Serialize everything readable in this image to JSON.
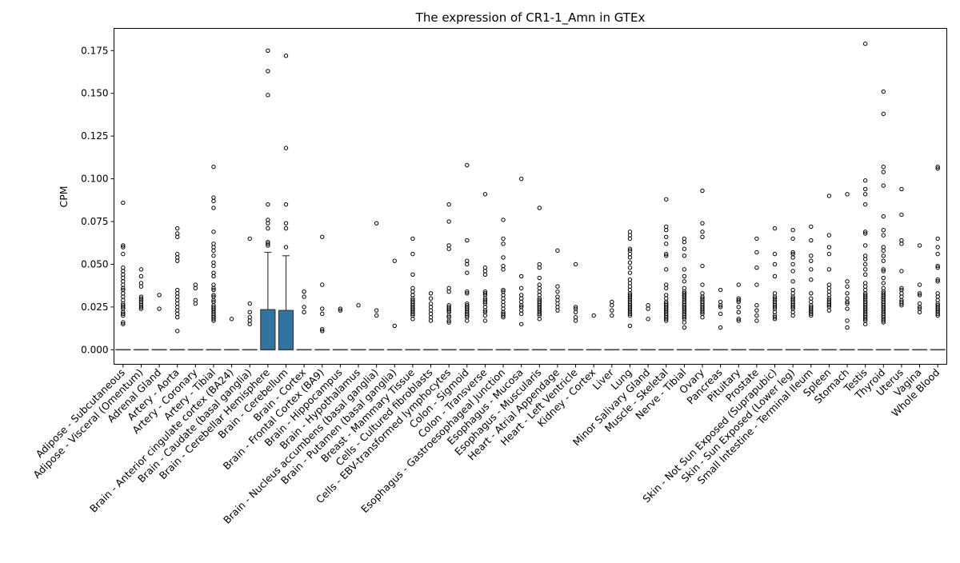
{
  "chart_data": {
    "type": "box",
    "title": "The expression of CR1-1_Amn in GTEx",
    "xlabel": "",
    "ylabel": "CPM",
    "ylim": [
      -0.0085,
      0.188
    ],
    "yticks": [
      0.0,
      0.025,
      0.05,
      0.075,
      0.1,
      0.125,
      0.15,
      0.175
    ],
    "ytick_labels": [
      "0.000",
      "0.025",
      "0.050",
      "0.075",
      "0.100",
      "0.125",
      "0.150",
      "0.175"
    ],
    "grid": false,
    "box_color": "#3274a1",
    "categories": [
      "Adipose - Subcutaneous",
      "Adipose - Visceral (Omentum)",
      "Adrenal Gland",
      "Artery - Aorta",
      "Artery - Coronary",
      "Artery - Tibial",
      "Brain - Anterior cingulate cortex (BA24)",
      "Brain - Caudate (basal ganglia)",
      "Brain - Cerebellar Hemisphere",
      "Brain - Cerebellum",
      "Brain - Cortex",
      "Brain - Frontal Cortex (BA9)",
      "Brain - Hippocampus",
      "Brain - Hypothalamus",
      "Brain - Nucleus accumbens (basal ganglia)",
      "Brain - Putamen (basal ganglia)",
      "Breast - Mammary Tissue",
      "Cells - Cultured fibroblasts",
      "Cells - EBV-transformed lymphocytes",
      "Colon - Sigmoid",
      "Colon - Transverse",
      "Esophagus - Gastroesophageal Junction",
      "Esophagus - Mucosa",
      "Esophagus - Muscularis",
      "Heart - Atrial Appendage",
      "Heart - Left Ventricle",
      "Kidney - Cortex",
      "Liver",
      "Lung",
      "Minor Salivary Gland",
      "Muscle - Skeletal",
      "Nerve - Tibial",
      "Ovary",
      "Pancreas",
      "Pituitary",
      "Prostate",
      "Skin - Not Sun Exposed (Suprapubic)",
      "Skin - Sun Exposed (Lower leg)",
      "Small Intestine - Terminal Ileum",
      "Spleen",
      "Stomach",
      "Testis",
      "Thyroid",
      "Uterus",
      "Vagina",
      "Whole Blood"
    ],
    "boxes": [
      {
        "q1": 0,
        "median": 0,
        "q3": 0,
        "whisker_low": 0,
        "whisker_high": 0,
        "outliers": [
          0.086,
          0.061,
          0.06,
          0.056,
          0.048,
          0.046,
          0.044,
          0.042,
          0.04,
          0.038,
          0.036,
          0.035,
          0.033,
          0.031,
          0.029,
          0.027,
          0.026,
          0.025,
          0.024,
          0.022,
          0.021,
          0.02,
          0.016,
          0.015
        ]
      },
      {
        "q1": 0,
        "median": 0,
        "q3": 0,
        "whisker_low": 0,
        "whisker_high": 0,
        "outliers": [
          0.047,
          0.043,
          0.039,
          0.037,
          0.031,
          0.03,
          0.029,
          0.028,
          0.027,
          0.026,
          0.025,
          0.024
        ]
      },
      {
        "q1": 0,
        "median": 0,
        "q3": 0,
        "whisker_low": 0,
        "whisker_high": 0,
        "outliers": [
          0.032,
          0.024
        ]
      },
      {
        "q1": 0,
        "median": 0,
        "q3": 0,
        "whisker_low": 0,
        "whisker_high": 0,
        "outliers": [
          0.071,
          0.068,
          0.066,
          0.056,
          0.054,
          0.052,
          0.035,
          0.033,
          0.031,
          0.029,
          0.027,
          0.025,
          0.023,
          0.021,
          0.019,
          0.011
        ]
      },
      {
        "q1": 0,
        "median": 0,
        "q3": 0,
        "whisker_low": 0,
        "whisker_high": 0,
        "outliers": [
          0.038,
          0.036,
          0.029,
          0.027
        ]
      },
      {
        "q1": 0,
        "median": 0,
        "q3": 0,
        "whisker_low": 0,
        "whisker_high": 0,
        "outliers": [
          0.107,
          0.089,
          0.087,
          0.083,
          0.069,
          0.062,
          0.06,
          0.058,
          0.055,
          0.051,
          0.049,
          0.045,
          0.043,
          0.038,
          0.036,
          0.035,
          0.032,
          0.031,
          0.029,
          0.028,
          0.026,
          0.025,
          0.024,
          0.023,
          0.022,
          0.021,
          0.02,
          0.019,
          0.018,
          0.017
        ]
      },
      {
        "q1": 0,
        "median": 0,
        "q3": 0,
        "whisker_low": 0,
        "whisker_high": 0,
        "outliers": [
          0.018
        ]
      },
      {
        "q1": 0,
        "median": 0,
        "q3": 0,
        "whisker_low": 0,
        "whisker_high": 0,
        "outliers": [
          0.065,
          0.027,
          0.022,
          0.019,
          0.017,
          0.015
        ]
      },
      {
        "q1": 0,
        "median": 0,
        "q3": 0.0235,
        "whisker_low": 0,
        "whisker_high": 0.057,
        "outliers": [
          0.175,
          0.163,
          0.149,
          0.085,
          0.076,
          0.074,
          0.071,
          0.063,
          0.062,
          0.061
        ]
      },
      {
        "q1": 0,
        "median": 0,
        "q3": 0.023,
        "whisker_low": 0,
        "whisker_high": 0.055,
        "outliers": [
          0.172,
          0.118,
          0.085,
          0.074,
          0.071,
          0.06
        ]
      },
      {
        "q1": 0,
        "median": 0,
        "q3": 0,
        "whisker_low": 0,
        "whisker_high": 0,
        "outliers": [
          0.034,
          0.031,
          0.025,
          0.022
        ]
      },
      {
        "q1": 0,
        "median": 0,
        "q3": 0,
        "whisker_low": 0,
        "whisker_high": 0,
        "outliers": [
          0.066,
          0.038,
          0.024,
          0.021,
          0.012,
          0.011
        ]
      },
      {
        "q1": 0,
        "median": 0,
        "q3": 0,
        "whisker_low": 0,
        "whisker_high": 0,
        "outliers": [
          0.024,
          0.023
        ]
      },
      {
        "q1": 0,
        "median": 0,
        "q3": 0,
        "whisker_low": 0,
        "whisker_high": 0,
        "outliers": [
          0.026
        ]
      },
      {
        "q1": 0,
        "median": 0,
        "q3": 0,
        "whisker_low": 0,
        "whisker_high": 0,
        "outliers": [
          0.074,
          0.023,
          0.02
        ]
      },
      {
        "q1": 0,
        "median": 0,
        "q3": 0,
        "whisker_low": 0,
        "whisker_high": 0,
        "outliers": [
          0.052,
          0.014
        ]
      },
      {
        "q1": 0,
        "median": 0,
        "q3": 0,
        "whisker_low": 0,
        "whisker_high": 0,
        "outliers": [
          0.065,
          0.056,
          0.044,
          0.036,
          0.034,
          0.032,
          0.03,
          0.029,
          0.028,
          0.027,
          0.026,
          0.025,
          0.024,
          0.023,
          0.022,
          0.021,
          0.02,
          0.018
        ]
      },
      {
        "q1": 0,
        "median": 0,
        "q3": 0,
        "whisker_low": 0,
        "whisker_high": 0,
        "outliers": [
          0.033,
          0.03,
          0.027,
          0.025,
          0.023,
          0.021,
          0.019,
          0.017
        ]
      },
      {
        "q1": 0,
        "median": 0,
        "q3": 0,
        "whisker_low": 0,
        "whisker_high": 0,
        "outliers": [
          0.085,
          0.075,
          0.061,
          0.059,
          0.036,
          0.034,
          0.026,
          0.025,
          0.024,
          0.023,
          0.022,
          0.02,
          0.019,
          0.017,
          0.016
        ]
      },
      {
        "q1": 0,
        "median": 0,
        "q3": 0,
        "whisker_low": 0,
        "whisker_high": 0,
        "outliers": [
          0.108,
          0.064,
          0.052,
          0.05,
          0.045,
          0.034,
          0.033,
          0.027,
          0.026,
          0.025,
          0.024,
          0.023,
          0.022,
          0.021,
          0.02,
          0.019,
          0.017
        ]
      },
      {
        "q1": 0,
        "median": 0,
        "q3": 0,
        "whisker_low": 0,
        "whisker_high": 0,
        "outliers": [
          0.091,
          0.048,
          0.046,
          0.044,
          0.034,
          0.033,
          0.032,
          0.03,
          0.029,
          0.028,
          0.027,
          0.025,
          0.023,
          0.022,
          0.02,
          0.017
        ]
      },
      {
        "q1": 0,
        "median": 0,
        "q3": 0,
        "whisker_low": 0,
        "whisker_high": 0,
        "outliers": [
          0.076,
          0.065,
          0.062,
          0.054,
          0.049,
          0.047,
          0.035,
          0.034,
          0.032,
          0.03,
          0.028,
          0.026,
          0.024,
          0.022,
          0.021,
          0.02,
          0.019
        ]
      },
      {
        "q1": 0,
        "median": 0,
        "q3": 0,
        "whisker_low": 0,
        "whisker_high": 0,
        "outliers": [
          0.1,
          0.043,
          0.036,
          0.032,
          0.03,
          0.028,
          0.026,
          0.025,
          0.023,
          0.021,
          0.015
        ]
      },
      {
        "q1": 0,
        "median": 0,
        "q3": 0,
        "whisker_low": 0,
        "whisker_high": 0,
        "outliers": [
          0.083,
          0.05,
          0.048,
          0.042,
          0.038,
          0.036,
          0.034,
          0.032,
          0.03,
          0.029,
          0.028,
          0.027,
          0.026,
          0.025,
          0.024,
          0.023,
          0.022,
          0.021,
          0.02,
          0.018
        ]
      },
      {
        "q1": 0,
        "median": 0,
        "q3": 0,
        "whisker_low": 0,
        "whisker_high": 0,
        "outliers": [
          0.058,
          0.037,
          0.034,
          0.031,
          0.029,
          0.027,
          0.025,
          0.023
        ]
      },
      {
        "q1": 0,
        "median": 0,
        "q3": 0,
        "whisker_low": 0,
        "whisker_high": 0,
        "outliers": [
          0.05,
          0.025,
          0.024,
          0.022,
          0.019,
          0.017
        ]
      },
      {
        "q1": 0,
        "median": 0,
        "q3": 0,
        "whisker_low": 0,
        "whisker_high": 0,
        "outliers": [
          0.02
        ]
      },
      {
        "q1": 0,
        "median": 0,
        "q3": 0,
        "whisker_low": 0,
        "whisker_high": 0,
        "outliers": [
          0.028,
          0.026,
          0.023,
          0.02
        ]
      },
      {
        "q1": 0,
        "median": 0,
        "q3": 0,
        "whisker_low": 0,
        "whisker_high": 0,
        "outliers": [
          0.069,
          0.067,
          0.065,
          0.059,
          0.058,
          0.056,
          0.054,
          0.051,
          0.048,
          0.045,
          0.041,
          0.039,
          0.037,
          0.035,
          0.033,
          0.032,
          0.031,
          0.03,
          0.029,
          0.028,
          0.027,
          0.026,
          0.025,
          0.024,
          0.023,
          0.022,
          0.021,
          0.02,
          0.014
        ]
      },
      {
        "q1": 0,
        "median": 0,
        "q3": 0,
        "whisker_low": 0,
        "whisker_high": 0,
        "outliers": [
          0.026,
          0.024,
          0.018
        ]
      },
      {
        "q1": 0,
        "median": 0,
        "q3": 0,
        "whisker_low": 0,
        "whisker_high": 0,
        "outliers": [
          0.088,
          0.072,
          0.07,
          0.066,
          0.062,
          0.056,
          0.055,
          0.047,
          0.038,
          0.036,
          0.032,
          0.03,
          0.028,
          0.027,
          0.026,
          0.025,
          0.024,
          0.023,
          0.022,
          0.021,
          0.02,
          0.019,
          0.018,
          0.017
        ]
      },
      {
        "q1": 0,
        "median": 0,
        "q3": 0,
        "whisker_low": 0,
        "whisker_high": 0,
        "outliers": [
          0.065,
          0.063,
          0.059,
          0.055,
          0.047,
          0.043,
          0.04,
          0.036,
          0.034,
          0.033,
          0.032,
          0.031,
          0.03,
          0.029,
          0.028,
          0.027,
          0.026,
          0.025,
          0.024,
          0.023,
          0.022,
          0.021,
          0.02,
          0.019,
          0.018,
          0.016,
          0.013
        ]
      },
      {
        "q1": 0,
        "median": 0,
        "q3": 0,
        "whisker_low": 0,
        "whisker_high": 0,
        "outliers": [
          0.093,
          0.074,
          0.069,
          0.066,
          0.049,
          0.038,
          0.033,
          0.031,
          0.03,
          0.029,
          0.028,
          0.027,
          0.026,
          0.025,
          0.024,
          0.023,
          0.022,
          0.021,
          0.019
        ]
      },
      {
        "q1": 0,
        "median": 0,
        "q3": 0,
        "whisker_low": 0,
        "whisker_high": 0,
        "outliers": [
          0.035,
          0.028,
          0.026,
          0.025,
          0.021,
          0.013
        ]
      },
      {
        "q1": 0,
        "median": 0,
        "q3": 0,
        "whisker_low": 0,
        "whisker_high": 0,
        "outliers": [
          0.038,
          0.03,
          0.029,
          0.028,
          0.025,
          0.022,
          0.018,
          0.017
        ]
      },
      {
        "q1": 0,
        "median": 0,
        "q3": 0,
        "whisker_low": 0,
        "whisker_high": 0,
        "outliers": [
          0.065,
          0.057,
          0.048,
          0.038,
          0.026,
          0.023,
          0.02,
          0.017
        ]
      },
      {
        "q1": 0,
        "median": 0,
        "q3": 0,
        "whisker_low": 0,
        "whisker_high": 0,
        "outliers": [
          0.071,
          0.056,
          0.05,
          0.043,
          0.033,
          0.031,
          0.03,
          0.029,
          0.028,
          0.027,
          0.026,
          0.025,
          0.024,
          0.022,
          0.02,
          0.019,
          0.018
        ]
      },
      {
        "q1": 0,
        "median": 0,
        "q3": 0,
        "whisker_low": 0,
        "whisker_high": 0,
        "outliers": [
          0.07,
          0.065,
          0.057,
          0.056,
          0.054,
          0.05,
          0.046,
          0.04,
          0.035,
          0.033,
          0.031,
          0.03,
          0.029,
          0.028,
          0.027,
          0.026,
          0.025,
          0.024,
          0.022,
          0.02
        ]
      },
      {
        "q1": 0,
        "median": 0,
        "q3": 0,
        "whisker_low": 0,
        "whisker_high": 0,
        "outliers": [
          0.072,
          0.064,
          0.055,
          0.052,
          0.047,
          0.041,
          0.033,
          0.03,
          0.028,
          0.026,
          0.025,
          0.024,
          0.023,
          0.022,
          0.021,
          0.02
        ]
      },
      {
        "q1": 0,
        "median": 0,
        "q3": 0,
        "whisker_low": 0,
        "whisker_high": 0,
        "outliers": [
          0.09,
          0.067,
          0.06,
          0.056,
          0.047,
          0.038,
          0.036,
          0.034,
          0.032,
          0.03,
          0.029,
          0.028,
          0.027,
          0.026,
          0.025,
          0.023
        ]
      },
      {
        "q1": 0,
        "median": 0,
        "q3": 0,
        "whisker_low": 0,
        "whisker_high": 0,
        "outliers": [
          0.091,
          0.04,
          0.037,
          0.033,
          0.03,
          0.028,
          0.027,
          0.024,
          0.017,
          0.013
        ]
      },
      {
        "q1": 0,
        "median": 0,
        "q3": 0,
        "whisker_low": 0,
        "whisker_high": 0,
        "outliers": [
          0.179,
          0.099,
          0.094,
          0.091,
          0.085,
          0.069,
          0.068,
          0.061,
          0.055,
          0.053,
          0.05,
          0.047,
          0.044,
          0.039,
          0.037,
          0.035,
          0.033,
          0.032,
          0.031,
          0.03,
          0.029,
          0.028,
          0.027,
          0.026,
          0.025,
          0.024,
          0.023,
          0.022,
          0.021,
          0.02,
          0.019,
          0.018,
          0.017,
          0.015
        ]
      },
      {
        "q1": 0,
        "median": 0,
        "q3": 0,
        "whisker_low": 0,
        "whisker_high": 0,
        "outliers": [
          0.151,
          0.138,
          0.107,
          0.104,
          0.096,
          0.078,
          0.07,
          0.067,
          0.06,
          0.058,
          0.055,
          0.052,
          0.047,
          0.046,
          0.042,
          0.039,
          0.036,
          0.034,
          0.033,
          0.032,
          0.031,
          0.03,
          0.029,
          0.028,
          0.027,
          0.026,
          0.025,
          0.024,
          0.023,
          0.022,
          0.021,
          0.02,
          0.019,
          0.018,
          0.017,
          0.016
        ]
      },
      {
        "q1": 0,
        "median": 0,
        "q3": 0,
        "whisker_low": 0,
        "whisker_high": 0,
        "outliers": [
          0.094,
          0.079,
          0.064,
          0.062,
          0.046,
          0.036,
          0.035,
          0.033,
          0.031,
          0.029,
          0.028,
          0.027,
          0.026
        ]
      },
      {
        "q1": 0,
        "median": 0,
        "q3": 0,
        "whisker_low": 0,
        "whisker_high": 0,
        "outliers": [
          0.061,
          0.038,
          0.033,
          0.032,
          0.027,
          0.025,
          0.024,
          0.022
        ]
      },
      {
        "q1": 0,
        "median": 0,
        "q3": 0,
        "whisker_low": 0,
        "whisker_high": 0,
        "outliers": [
          0.107,
          0.106,
          0.065,
          0.06,
          0.056,
          0.049,
          0.048,
          0.041,
          0.04,
          0.033,
          0.031,
          0.029,
          0.027,
          0.026,
          0.025,
          0.024,
          0.023,
          0.022,
          0.021,
          0.02
        ]
      }
    ]
  }
}
